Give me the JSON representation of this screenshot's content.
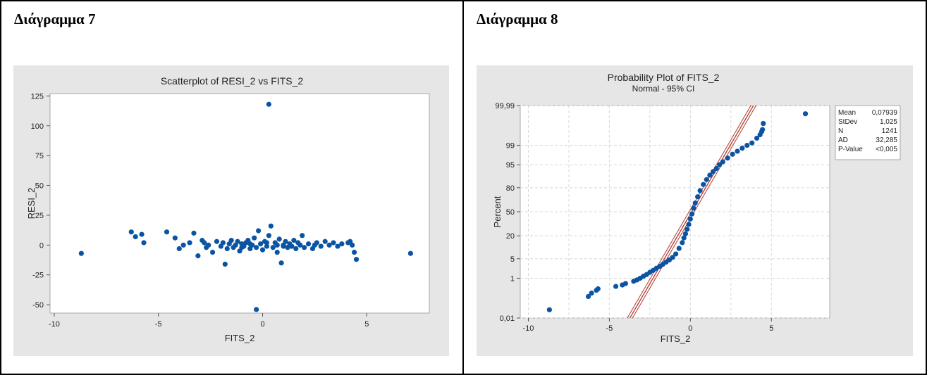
{
  "panels": [
    {
      "heading": "Διάγραμμα 7",
      "chart_data": {
        "type": "scatter",
        "title": "Scatterplot of RESI_2 vs FITS_2",
        "xlabel": "FITS_2",
        "ylabel": "RESI_2",
        "xlim": [
          -10.2,
          8
        ],
        "ylim": [
          -57,
          127
        ],
        "xticks": [
          -10,
          -5,
          0,
          5
        ],
        "yticks": [
          -50,
          -25,
          0,
          25,
          50,
          75,
          100,
          125
        ],
        "ytick_labels": [
          "-50",
          "-25",
          "0",
          "25",
          "50",
          "75",
          "100",
          "125"
        ],
        "point_color": "#0b54a3",
        "background_color": "#e6e6e6",
        "points": [
          [
            -8.7,
            -7
          ],
          [
            7.1,
            -7
          ],
          [
            0.3,
            118
          ],
          [
            -0.3,
            -54
          ],
          [
            -6.3,
            11
          ],
          [
            -6.1,
            7
          ],
          [
            -5.8,
            9
          ],
          [
            -5.7,
            2
          ],
          [
            -4.6,
            11
          ],
          [
            -4.2,
            6
          ],
          [
            -4.0,
            -3
          ],
          [
            -3.5,
            2
          ],
          [
            -3.3,
            10
          ],
          [
            -3.1,
            -9
          ],
          [
            -2.9,
            4
          ],
          [
            -2.7,
            -2
          ],
          [
            -2.6,
            0
          ],
          [
            -2.4,
            -6
          ],
          [
            -2.2,
            3
          ],
          [
            -2.0,
            -1
          ],
          [
            -1.9,
            2
          ],
          [
            -1.8,
            -16
          ],
          [
            -1.7,
            -3
          ],
          [
            -1.6,
            1
          ],
          [
            -1.5,
            4
          ],
          [
            -1.4,
            -2
          ],
          [
            -1.3,
            0
          ],
          [
            -1.2,
            3
          ],
          [
            -1.1,
            -5
          ],
          [
            -1.0,
            1
          ],
          [
            -0.9,
            -1
          ],
          [
            -0.8,
            2
          ],
          [
            -0.7,
            4
          ],
          [
            -0.6,
            -3
          ],
          [
            -0.5,
            0
          ],
          [
            -0.4,
            6
          ],
          [
            -0.3,
            -2
          ],
          [
            -0.2,
            12
          ],
          [
            -0.1,
            1
          ],
          [
            0.0,
            -4
          ],
          [
            0.1,
            3
          ],
          [
            0.2,
            -1
          ],
          [
            0.3,
            8
          ],
          [
            0.4,
            16
          ],
          [
            0.5,
            -2
          ],
          [
            0.6,
            2
          ],
          [
            0.7,
            -6
          ],
          [
            0.8,
            5
          ],
          [
            0.9,
            -15
          ],
          [
            1.0,
            0
          ],
          [
            1.1,
            3
          ],
          [
            1.2,
            -2
          ],
          [
            1.3,
            1
          ],
          [
            1.4,
            -1
          ],
          [
            1.5,
            4
          ],
          [
            1.6,
            -3
          ],
          [
            1.7,
            2
          ],
          [
            1.8,
            0
          ],
          [
            1.9,
            8
          ],
          [
            2.0,
            -2
          ],
          [
            2.2,
            1
          ],
          [
            2.4,
            -3
          ],
          [
            2.6,
            2
          ],
          [
            2.8,
            -1
          ],
          [
            3.0,
            3
          ],
          [
            3.2,
            0
          ],
          [
            3.4,
            2
          ],
          [
            3.6,
            -1
          ],
          [
            3.8,
            1
          ],
          [
            4.1,
            2
          ],
          [
            4.3,
            0
          ],
          [
            4.4,
            -6
          ],
          [
            4.5,
            -12
          ],
          [
            4.2,
            3
          ],
          [
            -3.8,
            0
          ],
          [
            -2.8,
            2
          ],
          [
            -1.0,
            -2
          ],
          [
            0.2,
            2
          ],
          [
            1.0,
            -1
          ],
          [
            2.5,
            0
          ],
          [
            -0.6,
            1
          ],
          [
            0.7,
            0
          ]
        ]
      }
    },
    {
      "heading": "Διάγραμμα 8",
      "chart_data": {
        "type": "scatter",
        "title": "Probability Plot of FITS_2",
        "subtitle": "Normal - 95% CI",
        "xlabel": "FITS_2",
        "ylabel": "Percent",
        "xlim": [
          -10.5,
          8.6
        ],
        "xticks": [
          -10,
          -5,
          0,
          5
        ],
        "y_scale": "normal-probability",
        "ylim_percent": [
          0.01,
          99.99
        ],
        "yticks": [
          0.01,
          1,
          5,
          20,
          50,
          80,
          95,
          99,
          99.99
        ],
        "ytick_labels": [
          "0,01",
          "1",
          "5",
          "20",
          "50",
          "80",
          "95",
          "99",
          "99,99"
        ],
        "point_color": "#0b54a3",
        "fit_line_color": "#b03a2e",
        "background_color": "#e6e6e6",
        "fit": {
          "mean": 0.07939,
          "stdev": 1.025
        },
        "points": [
          [
            -8.7,
            0.03
          ],
          [
            -6.3,
            0.15
          ],
          [
            -6.1,
            0.22
          ],
          [
            -5.8,
            0.3
          ],
          [
            -5.7,
            0.35
          ],
          [
            -4.6,
            0.45
          ],
          [
            -4.2,
            0.52
          ],
          [
            -4.0,
            0.6
          ],
          [
            -3.5,
            0.75
          ],
          [
            -3.3,
            0.85
          ],
          [
            -3.1,
            1.0
          ],
          [
            -2.9,
            1.2
          ],
          [
            -2.7,
            1.4
          ],
          [
            -2.5,
            1.7
          ],
          [
            -2.3,
            2.0
          ],
          [
            -2.1,
            2.4
          ],
          [
            -1.9,
            2.8
          ],
          [
            -1.7,
            3.3
          ],
          [
            -1.5,
            3.9
          ],
          [
            -1.3,
            4.6
          ],
          [
            -1.1,
            5.5
          ],
          [
            -0.9,
            7
          ],
          [
            -0.7,
            10
          ],
          [
            -0.5,
            14
          ],
          [
            -0.4,
            18
          ],
          [
            -0.3,
            22
          ],
          [
            -0.2,
            27
          ],
          [
            -0.1,
            33
          ],
          [
            0.0,
            40
          ],
          [
            0.1,
            47
          ],
          [
            0.2,
            55
          ],
          [
            0.3,
            62
          ],
          [
            0.45,
            70
          ],
          [
            0.6,
            77
          ],
          [
            0.8,
            83
          ],
          [
            1.0,
            87
          ],
          [
            1.2,
            90
          ],
          [
            1.4,
            92
          ],
          [
            1.6,
            93.5
          ],
          [
            1.8,
            95
          ],
          [
            2.0,
            96
          ],
          [
            2.3,
            97
          ],
          [
            2.6,
            97.8
          ],
          [
            2.9,
            98.3
          ],
          [
            3.2,
            98.7
          ],
          [
            3.5,
            99.0
          ],
          [
            3.8,
            99.2
          ],
          [
            4.1,
            99.5
          ],
          [
            4.3,
            99.65
          ],
          [
            4.4,
            99.75
          ],
          [
            4.45,
            99.8
          ],
          [
            4.5,
            99.9
          ],
          [
            7.1,
            99.97
          ]
        ]
      },
      "stats": [
        {
          "label": "Mean",
          "value": "0,07939"
        },
        {
          "label": "StDev",
          "value": "1,025"
        },
        {
          "label": "N",
          "value": "1241"
        },
        {
          "label": "AD",
          "value": "32,285"
        },
        {
          "label": "P-Value",
          "value": "<0,005"
        }
      ]
    }
  ]
}
